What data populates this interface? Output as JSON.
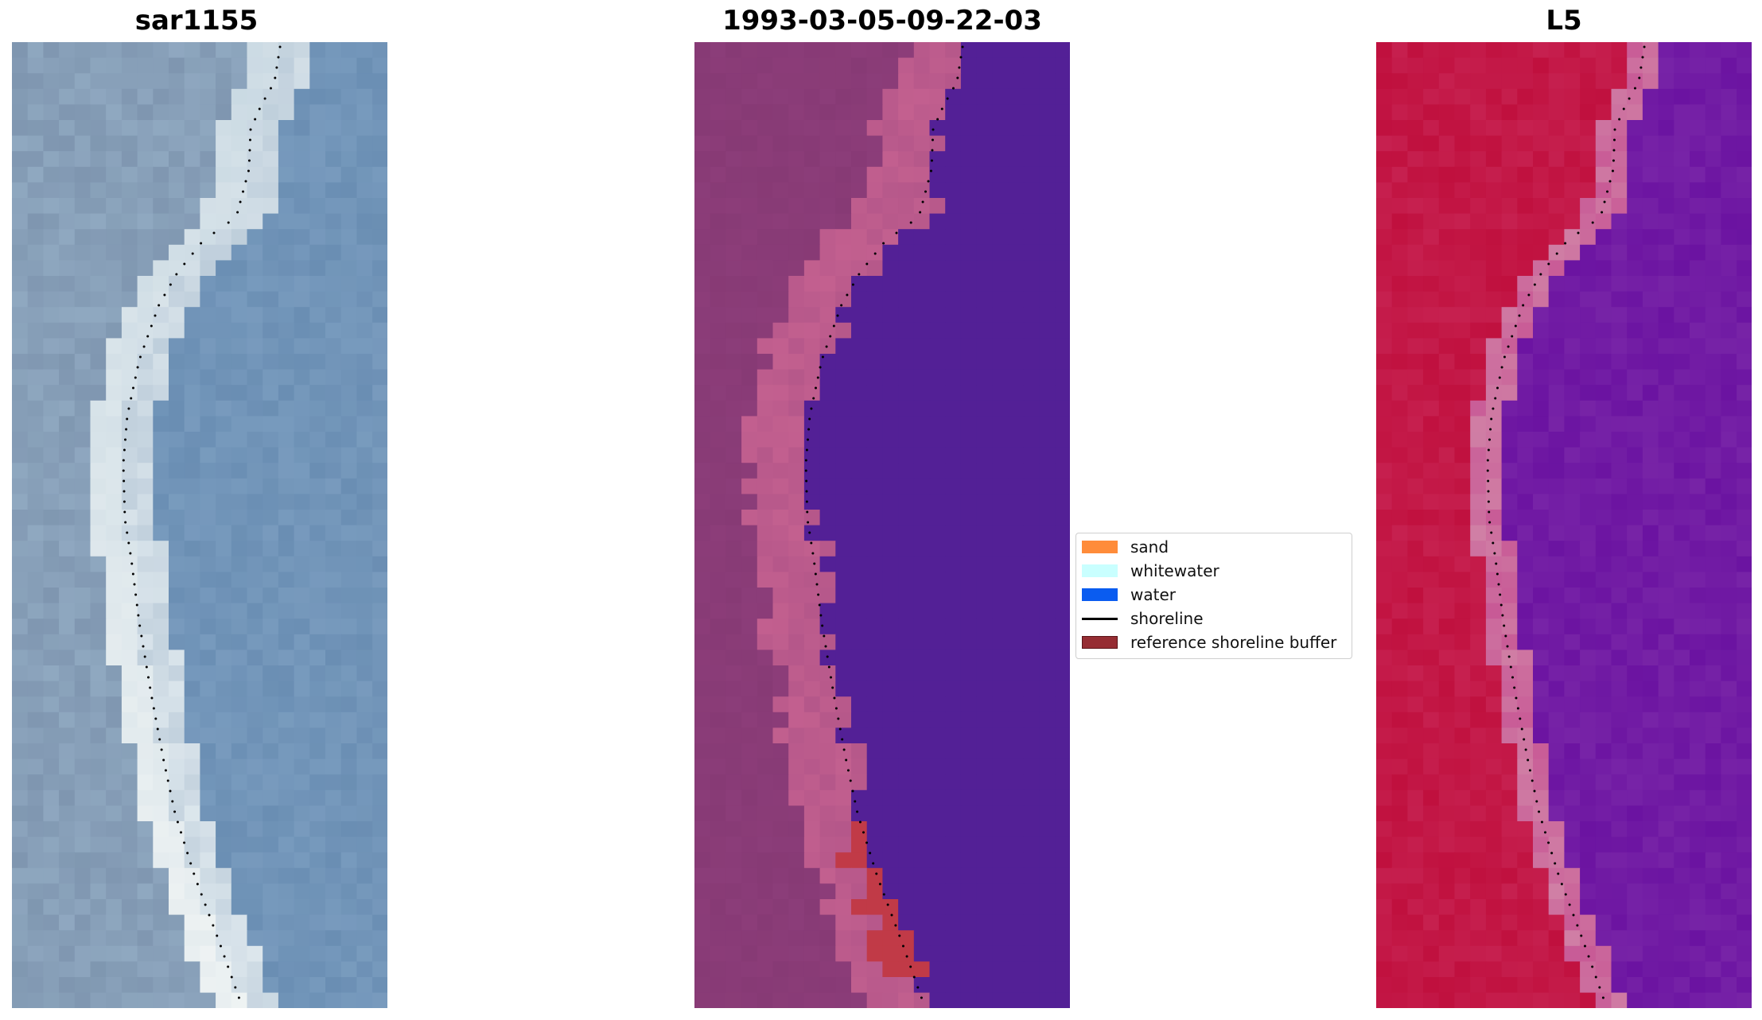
{
  "panels": [
    {
      "title": "sar1155",
      "kind": "rgb"
    },
    {
      "title": "1993-03-05-09-22-03",
      "kind": "classified"
    },
    {
      "title": "L5",
      "kind": "index"
    }
  ],
  "legend": {
    "items": [
      {
        "label": "sand",
        "color": "#ff8c3a",
        "type": "patch"
      },
      {
        "label": "whitewater",
        "color": "#c9ffff",
        "type": "patch"
      },
      {
        "label": "water",
        "color": "#0a5cf0",
        "type": "patch"
      },
      {
        "label": "shoreline",
        "color": "#000000",
        "type": "line"
      },
      {
        "label": "reference shoreline buffer",
        "color": "#962d33",
        "type": "patch"
      }
    ]
  },
  "colors": {
    "rgb_water": "#6a8eb3",
    "rgb_sand": "#f0f4f4",
    "classified_land": "#873a75",
    "classified_water": "#532096",
    "classified_buffer": "#c3608f",
    "classified_alert": "#c13a47",
    "index_land": "#c0103e",
    "index_water": "#6b13a1",
    "index_buffer": "#d07fa5"
  }
}
